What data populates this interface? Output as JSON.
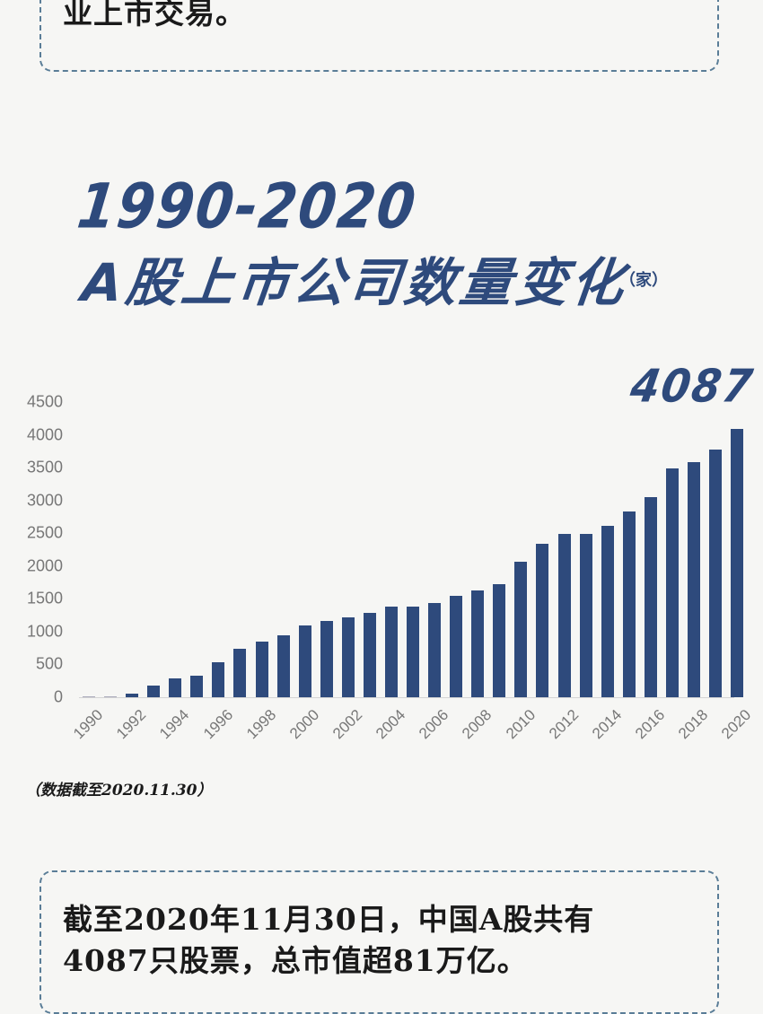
{
  "top_note": {
    "text": "业上市交易。"
  },
  "title": {
    "line1": "1990-2020",
    "line2": "A股上市公司数量变化",
    "unit": "（家）"
  },
  "highlight_value": "4087",
  "source_note": "（数据截至2020.11.30）",
  "bottom_note": {
    "line1": "截至2020年11月30日，中国A股共有",
    "line2": "4087只股票，总市值超81万亿。"
  },
  "colors": {
    "bar": "#2e4a7c",
    "title": "#2e4a7c",
    "border": "#5a7d97",
    "background": "#f6f6f4"
  },
  "chart_data": {
    "type": "bar",
    "title": "1990-2020 A股上市公司数量变化（家）",
    "xlabel": "",
    "ylabel": "家",
    "ylim": [
      0,
      4500
    ],
    "yticks": [
      0,
      500,
      1000,
      1500,
      2000,
      2500,
      3000,
      3500,
      4000,
      4500
    ],
    "grid": false,
    "legend": "none",
    "categories": [
      "1990",
      "1991",
      "1992",
      "1993",
      "1994",
      "1995",
      "1996",
      "1997",
      "1998",
      "1999",
      "2000",
      "2001",
      "2002",
      "2003",
      "2004",
      "2005",
      "2006",
      "2007",
      "2008",
      "2009",
      "2010",
      "2011",
      "2012",
      "2013",
      "2014",
      "2015",
      "2016",
      "2017",
      "2018",
      "2019",
      "2020"
    ],
    "xtick_labels": [
      "1990",
      "1992",
      "1994",
      "1996",
      "1998",
      "2000",
      "2002",
      "2004",
      "2006",
      "2008",
      "2010",
      "2012",
      "2014",
      "2016",
      "2018",
      "2020"
    ],
    "values": [
      10,
      14,
      53,
      183,
      291,
      323,
      530,
      745,
      851,
      949,
      1088,
      1160,
      1224,
      1287,
      1377,
      1381,
      1434,
      1550,
      1625,
      1718,
      2063,
      2342,
      2494,
      2489,
      2613,
      2827,
      3052,
      3485,
      3584,
      3777,
      4087
    ],
    "annotations": [
      {
        "category": "2020",
        "text": "4087"
      }
    ],
    "source": "（数据截至2020.11.30）"
  }
}
